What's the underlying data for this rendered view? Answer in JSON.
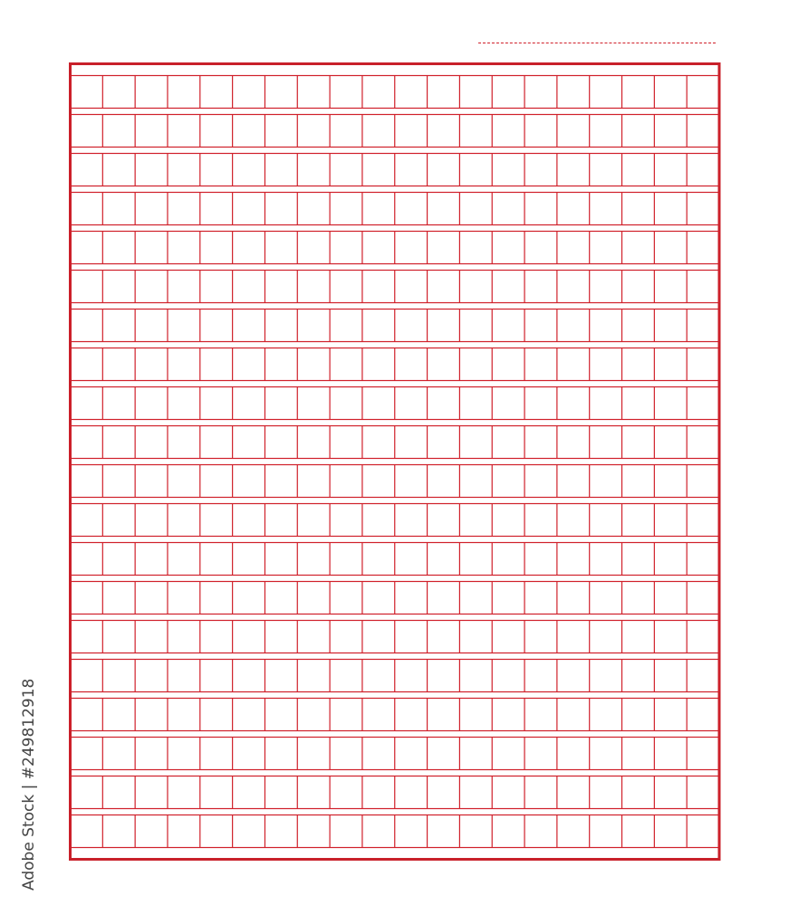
{
  "paper": {
    "type": "chinese-composition-grid",
    "rows": 20,
    "columns": 20,
    "line_color": "#d0202a",
    "border_color": "#c8202a"
  },
  "watermark": {
    "text": "Adobe Stock | #249812918"
  }
}
